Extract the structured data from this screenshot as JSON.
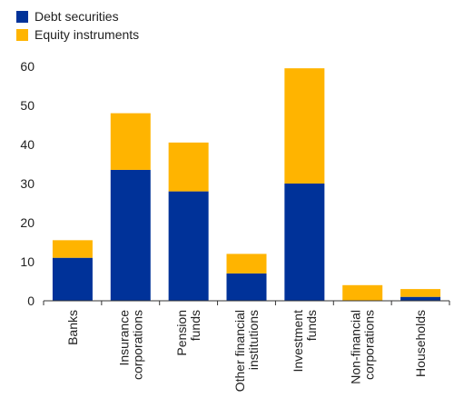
{
  "chart_data": {
    "type": "bar",
    "stacked": true,
    "categories": [
      [
        "Banks"
      ],
      [
        "Insurance",
        "corporations"
      ],
      [
        "Pension",
        "funds"
      ],
      [
        "Other financial",
        "institutions"
      ],
      [
        "Investment",
        "funds"
      ],
      [
        "Non-financial",
        "corporations"
      ],
      [
        "Households"
      ]
    ],
    "series": [
      {
        "name": "Debt securities",
        "color": "#003299",
        "values": [
          11,
          33.5,
          28,
          7,
          30,
          0,
          1
        ]
      },
      {
        "name": "Equity instruments",
        "color": "#FFB400",
        "values": [
          4.5,
          14.5,
          12.5,
          5,
          29.5,
          4,
          2
        ]
      }
    ],
    "ylim": [
      0,
      60
    ],
    "yticks": [
      0,
      10,
      20,
      30,
      40,
      50,
      60
    ],
    "legend": "top-left",
    "grid": false
  }
}
